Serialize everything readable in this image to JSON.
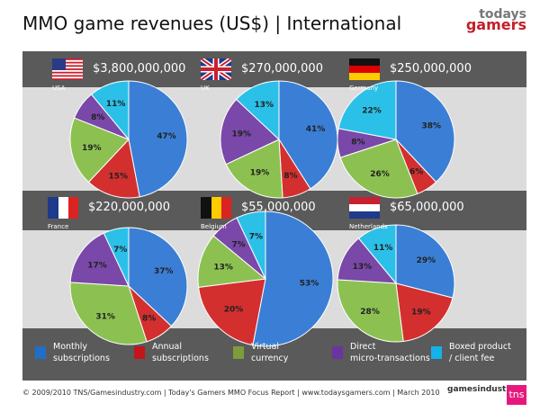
{
  "title": "MMO game revenues (US$) | International",
  "logo": {
    "line1": "todays",
    "line2": "gamers"
  },
  "colors": {
    "Monthly subscriptions": "#3a7fd5",
    "Annual subscriptions": "#d32f2f",
    "Virtual currency": "#8cc152",
    "Direct micro-transactions": "#7a48a8",
    "Boxed product / client fee": "#2bc0e8"
  },
  "chart_data": [
    {
      "type": "pie",
      "country": "USA",
      "total": "$3,800,000,000",
      "categories": [
        "Monthly subscriptions",
        "Annual subscriptions",
        "Virtual currency",
        "Direct micro-transactions",
        "Boxed product / client fee"
      ],
      "values": [
        47,
        15,
        19,
        8,
        11
      ]
    },
    {
      "type": "pie",
      "country": "UK",
      "total": "$270,000,000",
      "categories": [
        "Monthly subscriptions",
        "Annual subscriptions",
        "Virtual currency",
        "Direct micro-transactions",
        "Boxed product / client fee"
      ],
      "values": [
        41,
        8,
        19,
        19,
        13
      ]
    },
    {
      "type": "pie",
      "country": "Germany",
      "total": "$250,000,000",
      "categories": [
        "Monthly subscriptions",
        "Annual subscriptions",
        "Virtual currency",
        "Direct micro-transactions",
        "Boxed product / client fee"
      ],
      "values": [
        38,
        6,
        26,
        8,
        22
      ]
    },
    {
      "type": "pie",
      "country": "France",
      "total": "$220,000,000",
      "categories": [
        "Monthly subscriptions",
        "Annual subscriptions",
        "Virtual currency",
        "Direct micro-transactions",
        "Boxed product / client fee"
      ],
      "values": [
        37,
        8,
        31,
        17,
        7
      ]
    },
    {
      "type": "pie",
      "country": "Belgium",
      "total": "$55,000,000",
      "categories": [
        "Monthly subscriptions",
        "Annual subscriptions",
        "Virtual currency",
        "Direct micro-transactions",
        "Boxed product / client fee"
      ],
      "values": [
        53,
        20,
        13,
        7,
        7
      ]
    },
    {
      "type": "pie",
      "country": "Netherlands",
      "total": "$65,000,000",
      "categories": [
        "Monthly subscriptions",
        "Annual subscriptions",
        "Virtual currency",
        "Direct micro-transactions",
        "Boxed product / client fee"
      ],
      "values": [
        29,
        19,
        28,
        13,
        11
      ]
    }
  ],
  "legend": [
    {
      "line1": "Monthly",
      "line2": "subscriptions",
      "color": "#1f6fc8"
    },
    {
      "line1": "Annual",
      "line2": "subscriptions",
      "color": "#c0161c"
    },
    {
      "line1": "Virtual",
      "line2": "currency",
      "color": "#7d9c3c"
    },
    {
      "line1": "Direct",
      "line2": "micro-transactions",
      "color": "#6a35a0"
    },
    {
      "line1": "Boxed product",
      "line2": "/ client fee",
      "color": "#14b2ea"
    }
  ],
  "footer": "© 2009/2010 TNS/Gamesindustry.com | Today's Gamers MMO Focus Report | www.todaysgamers.com  | March 2010",
  "footer_logos": {
    "gi": "gamesindustry",
    "tns": "tns"
  }
}
